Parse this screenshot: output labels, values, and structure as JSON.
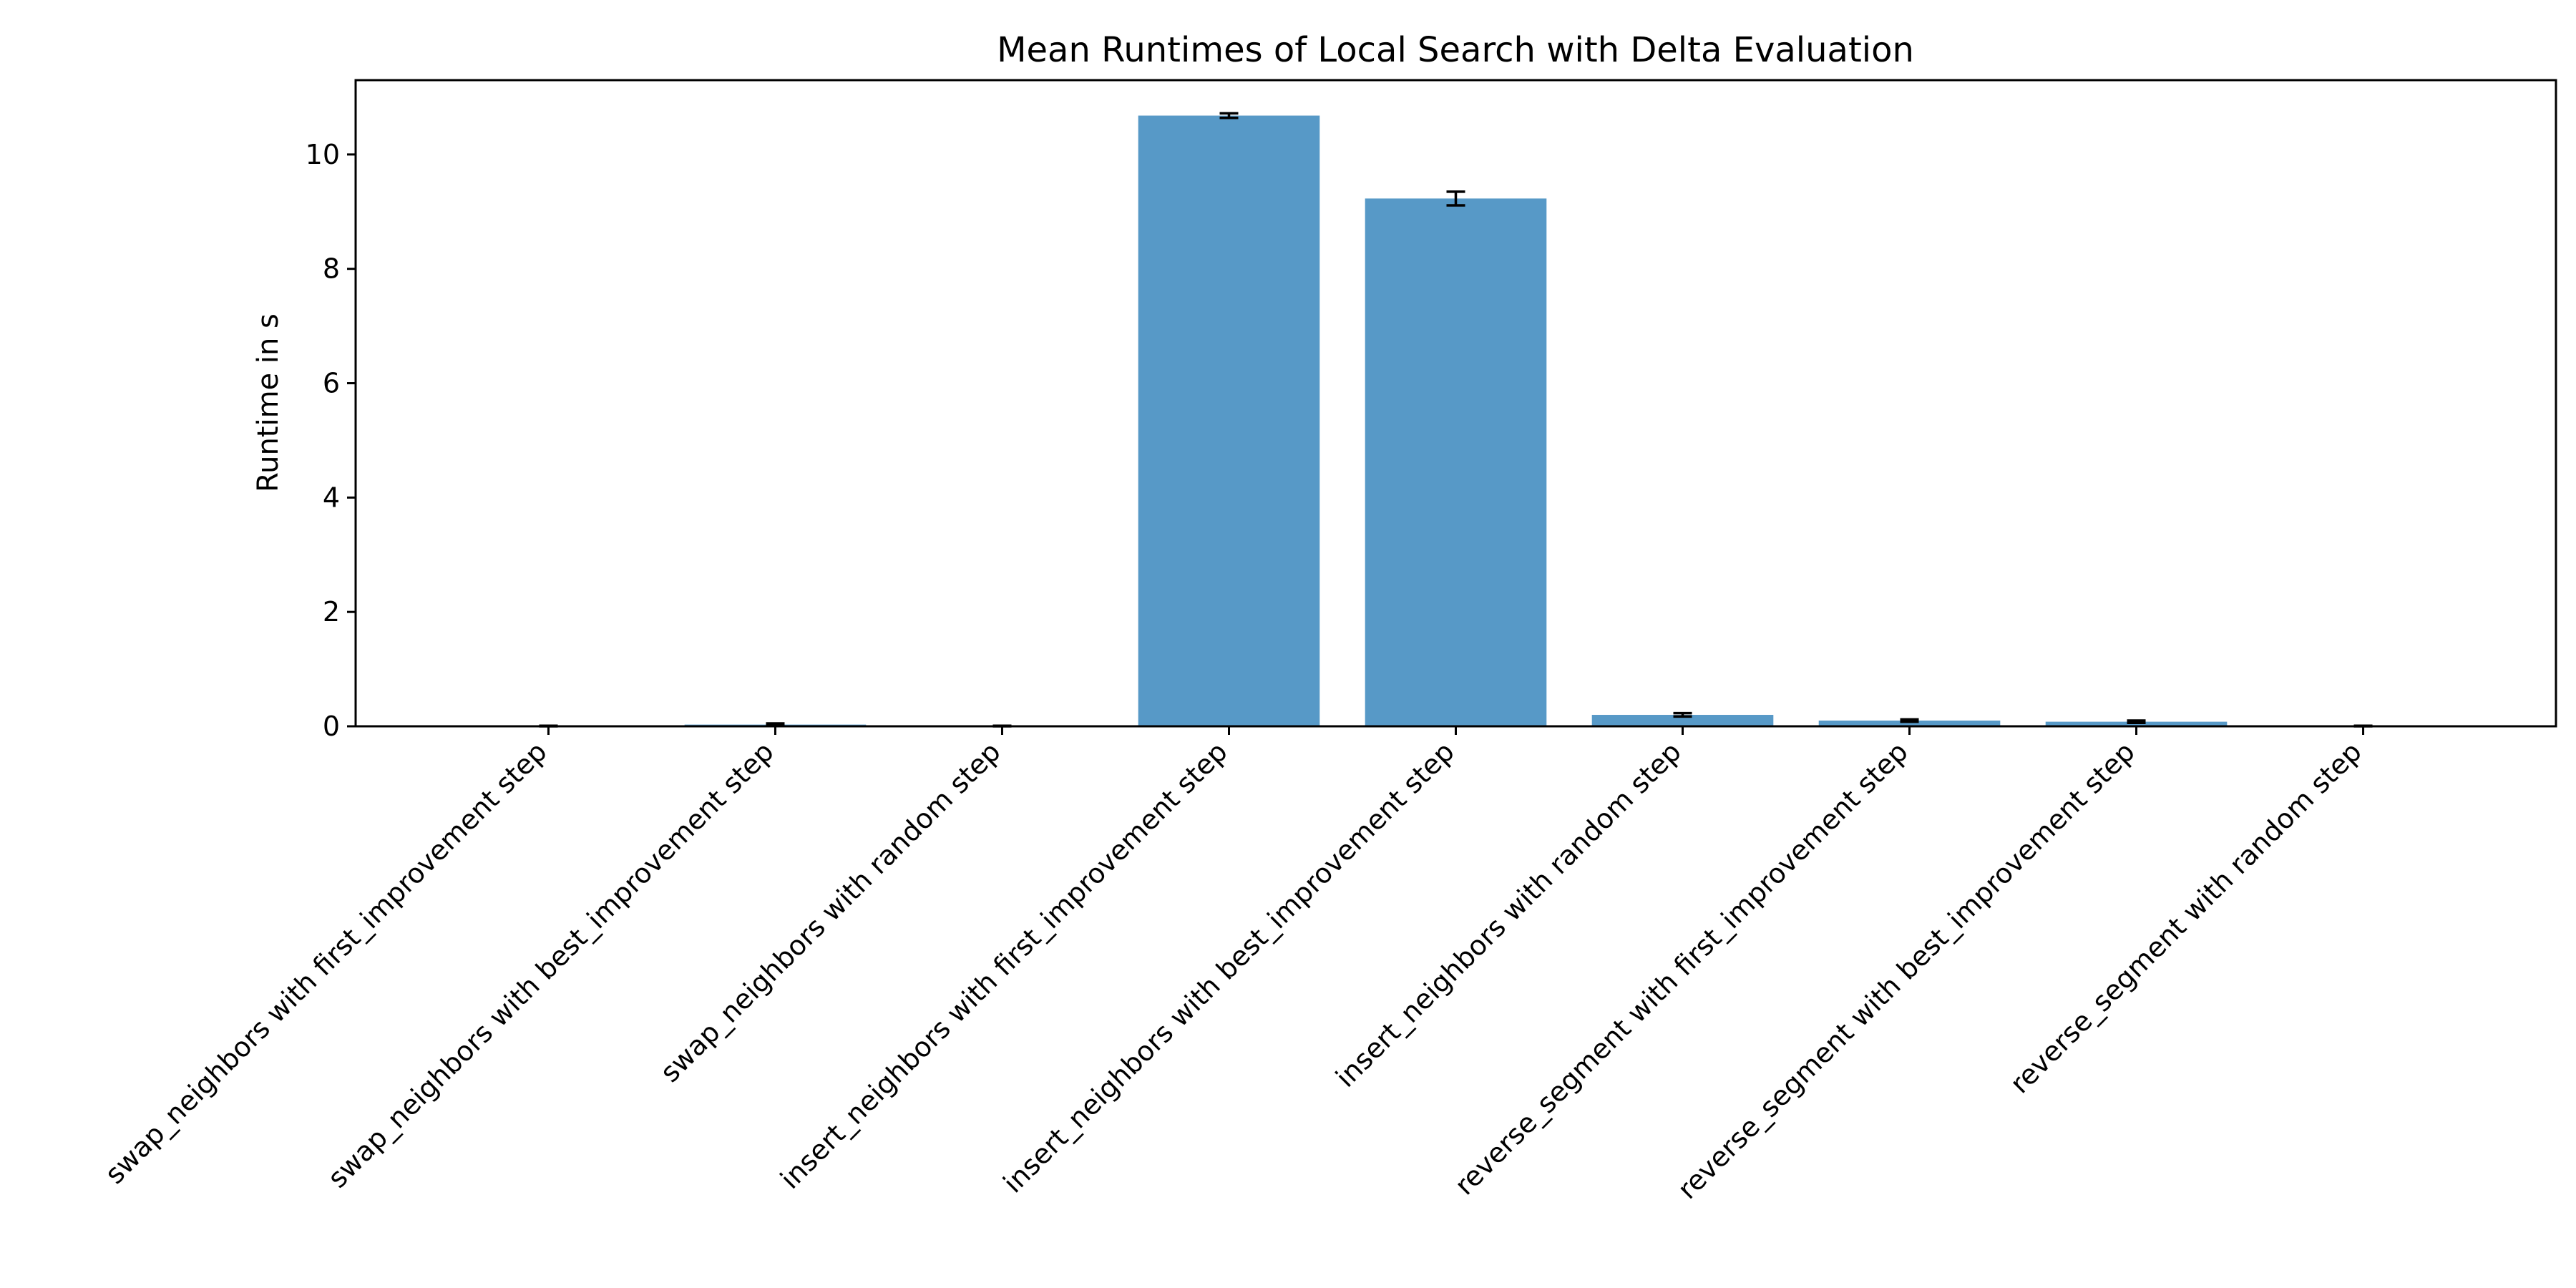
{
  "chart_data": {
    "type": "bar",
    "title": "Mean Runtimes of Local Search with Delta Evaluation",
    "xlabel": "",
    "ylabel": "Runtime in s",
    "ylim": [
      0,
      11.3
    ],
    "yticks": [
      0,
      2,
      4,
      6,
      8,
      10
    ],
    "ytick_labels": [
      "0",
      "2",
      "4",
      "6",
      "8",
      "10"
    ],
    "grid": false,
    "color": "#5799C7",
    "categories": [
      "swap_neighbors with first_improvement step",
      "swap_neighbors with best_improvement step",
      "swap_neighbors with random step",
      "insert_neighbors with first_improvement step",
      "insert_neighbors with best_improvement step",
      "insert_neighbors with random step",
      "reverse_segment with first_improvement step",
      "reverse_segment with best_improvement step",
      "reverse_segment with random step"
    ],
    "values": [
      0.005,
      0.03,
      0.005,
      10.68,
      9.23,
      0.2,
      0.1,
      0.08,
      0.005
    ],
    "errors": [
      0.005,
      0.02,
      0.005,
      0.04,
      0.12,
      0.03,
      0.02,
      0.02,
      0.005
    ]
  }
}
